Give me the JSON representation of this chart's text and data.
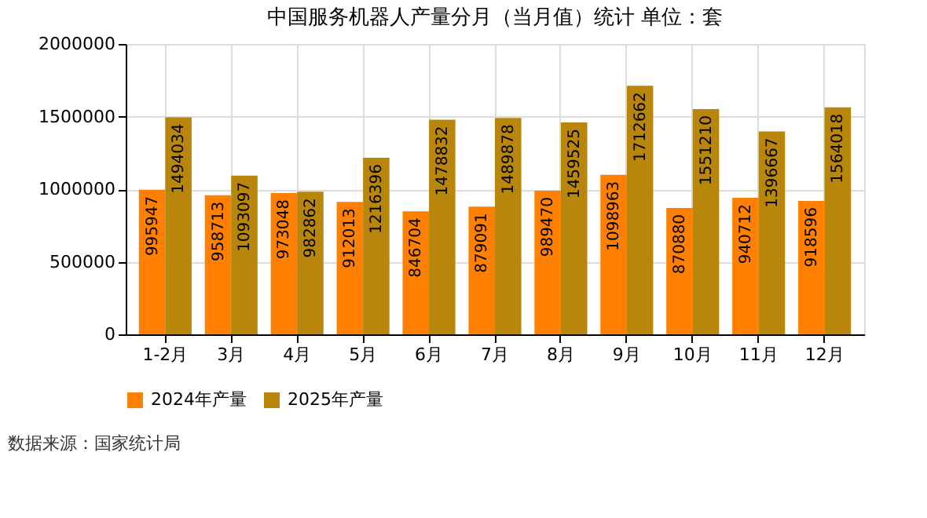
{
  "chart_data": {
    "type": "bar",
    "title": "中国服务机器人产量分月（当月值）统计  单位：套",
    "categories": [
      "1-2月",
      "3月",
      "4月",
      "5月",
      "6月",
      "7月",
      "8月",
      "9月",
      "10月",
      "11月",
      "12月"
    ],
    "series": [
      {
        "name": "2024年产量",
        "color": "#ff8000",
        "values": [
          995947,
          958713,
          973048,
          912013,
          846704,
          879091,
          989470,
          1098963,
          870880,
          940712,
          918596
        ]
      },
      {
        "name": "2025年产量",
        "color": "#b8860b",
        "values": [
          1494034,
          1093097,
          982862,
          1216396,
          1478832,
          1489878,
          1459525,
          1712662,
          1551210,
          1396667,
          1564018
        ]
      }
    ],
    "ylim": [
      0,
      2000000
    ],
    "yticks": [
      0,
      500000,
      1000000,
      1500000,
      2000000
    ],
    "grid": true,
    "legend": "bottom",
    "data_labels": true,
    "annotations": [
      "数据来源：国家统计局"
    ]
  }
}
